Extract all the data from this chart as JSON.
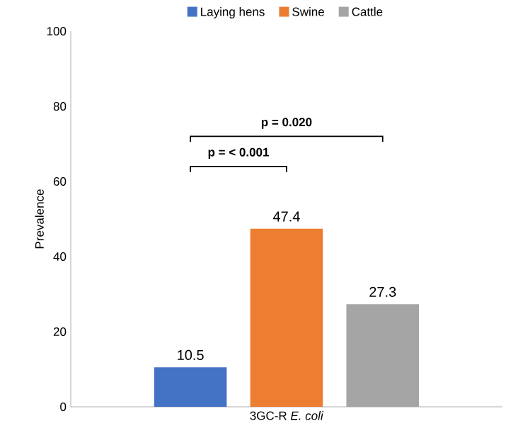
{
  "chart_data": {
    "type": "bar",
    "ylabel": "Prevalence",
    "categories": [
      "3GC-R *E. coli*"
    ],
    "series": [
      {
        "name": "Laying hens",
        "color": "#4472c4",
        "values": [
          10.5
        ]
      },
      {
        "name": "Swine",
        "color": "#ed7d31",
        "values": [
          47.4
        ]
      },
      {
        "name": "Cattle",
        "color": "#a5a5a5",
        "values": [
          27.3
        ]
      }
    ],
    "ylim": [
      0,
      100
    ],
    "yticks": [
      0,
      20,
      40,
      60,
      80,
      100
    ],
    "data_labels": true,
    "legend": "top",
    "annotations": [
      "p = < 0.001",
      "p = 0.020"
    ]
  }
}
